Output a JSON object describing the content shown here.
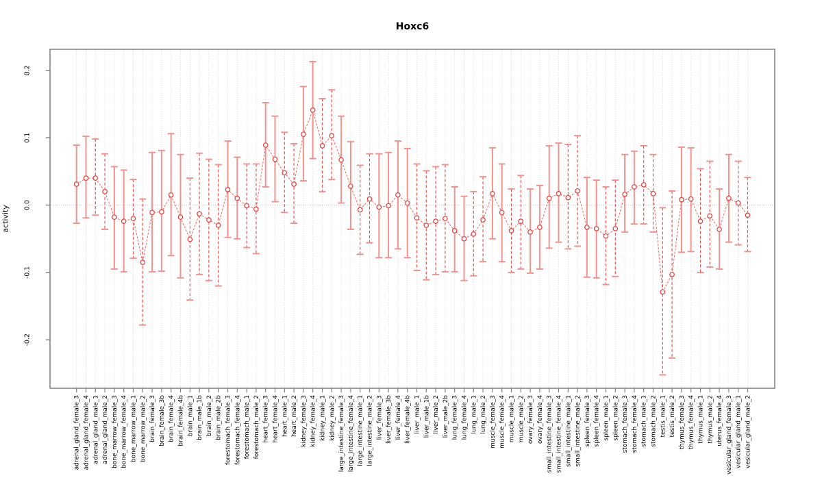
{
  "chart_data": {
    "type": "scatter",
    "title": "Hoxc6",
    "xlabel": "",
    "ylabel": "activity",
    "ylim": [
      -0.27,
      0.235
    ],
    "yticks": [
      -0.2,
      -0.1,
      0.0,
      0.1,
      0.2
    ],
    "grid": "dotted vertical gridline at every category; dotted horizontal reference line at y=0",
    "legend": "none",
    "marker": "open-circle",
    "errorbar_linetype_rule": "female samples solid, male samples dashed",
    "categories": [
      "adrenal_gland_female_3",
      "adrenal_gland_female_4",
      "adrenal_gland_male_1",
      "adrenal_gland_male_2",
      "bone_marrow_female_3",
      "bone_marrow_female_4",
      "bone_marrow_male_1",
      "bone_marrow_male_2",
      "brain_female_3",
      "brain_female_3b",
      "brain_female_4",
      "brain_female_4b",
      "brain_male_1",
      "brain_male_1b",
      "brain_male_2",
      "brain_male_2b",
      "forestomach_female_3",
      "forestomach_female_4",
      "forestomach_male_1",
      "forestomach_male_2",
      "heart_female_3",
      "heart_female_4",
      "heart_male_1",
      "heart_male_2",
      "kidney_female_3",
      "kidney_female_4",
      "kidney_male_1",
      "kidney_male_2",
      "large_intestine_female_3",
      "large_intestine_female_4",
      "large_intestine_male_1",
      "large_intestine_male_2",
      "liver_female_3",
      "liver_female_3b",
      "liver_female_4",
      "liver_female_4b",
      "liver_male_1",
      "liver_male_1b",
      "liver_male_2",
      "liver_male_2b",
      "lung_female_3",
      "lung_female_4",
      "lung_male_1",
      "lung_male_2",
      "muscle_female_3",
      "muscle_female_4",
      "muscle_male_1",
      "muscle_male_2",
      "ovary_female_3",
      "ovary_female_4",
      "small_intestine_female_3",
      "small_intestine_female_4",
      "small_intestine_male_1",
      "small_intestine_male_2",
      "spleen_female_3",
      "spleen_female_4",
      "spleen_male_1",
      "spleen_male_2",
      "stomach_female_3",
      "stomach_female_4",
      "stomach_male_1",
      "stomach_male_2",
      "testis_male_1",
      "testis_male_2",
      "thymus_female_3",
      "thymus_female_4",
      "thymus_male_1",
      "thymus_male_2",
      "uterus_female_4",
      "vesicular_gland_female_3",
      "vesicular_gland_male_1",
      "vesicular_gland_male_2"
    ],
    "values": [
      0.031,
      0.04,
      0.04,
      0.02,
      -0.018,
      -0.024,
      -0.02,
      -0.085,
      -0.011,
      -0.01,
      0.015,
      -0.018,
      -0.051,
      -0.013,
      -0.022,
      -0.03,
      0.023,
      0.01,
      -0.001,
      -0.006,
      0.089,
      0.068,
      0.048,
      0.031,
      0.105,
      0.141,
      0.088,
      0.103,
      0.067,
      0.028,
      -0.007,
      0.009,
      -0.003,
      -0.001,
      0.015,
      0.003,
      -0.019,
      -0.03,
      -0.024,
      -0.02,
      -0.038,
      -0.05,
      -0.043,
      -0.022,
      0.017,
      -0.011,
      -0.038,
      -0.024,
      -0.04,
      -0.033,
      0.01,
      0.017,
      0.011,
      0.021,
      -0.033,
      -0.035,
      -0.046,
      -0.035,
      0.016,
      0.027,
      0.03,
      0.017,
      -0.129,
      -0.103,
      0.008,
      0.009,
      -0.024,
      -0.016,
      -0.036,
      0.01,
      0.003,
      -0.015
    ],
    "err_high": [
      0.089,
      0.102,
      0.098,
      0.076,
      0.057,
      0.052,
      0.038,
      0.009,
      0.078,
      0.081,
      0.106,
      0.075,
      0.04,
      0.077,
      0.068,
      0.06,
      0.095,
      0.071,
      0.061,
      0.061,
      0.152,
      0.132,
      0.108,
      0.091,
      0.176,
      0.213,
      0.158,
      0.171,
      0.132,
      0.094,
      0.059,
      0.076,
      0.076,
      0.078,
      0.095,
      0.084,
      0.061,
      0.051,
      0.057,
      0.06,
      0.027,
      0.013,
      0.02,
      0.042,
      0.085,
      0.061,
      0.024,
      0.044,
      0.024,
      0.029,
      0.088,
      0.092,
      0.09,
      0.103,
      0.041,
      0.037,
      0.027,
      0.037,
      0.075,
      0.08,
      0.088,
      0.075,
      -0.004,
      0.021,
      0.086,
      0.085,
      0.054,
      0.065,
      0.024,
      0.075,
      0.065,
      0.041
    ],
    "err_low": [
      -0.027,
      -0.019,
      -0.015,
      -0.036,
      -0.095,
      -0.099,
      -0.079,
      -0.178,
      -0.099,
      -0.098,
      -0.075,
      -0.108,
      -0.141,
      -0.103,
      -0.112,
      -0.12,
      -0.048,
      -0.05,
      -0.063,
      -0.072,
      0.027,
      0.005,
      -0.011,
      -0.027,
      0.036,
      0.069,
      0.02,
      0.038,
      0.003,
      -0.036,
      -0.073,
      -0.056,
      -0.078,
      -0.078,
      -0.065,
      -0.078,
      -0.097,
      -0.111,
      -0.103,
      -0.099,
      -0.099,
      -0.112,
      -0.105,
      -0.084,
      -0.05,
      -0.084,
      -0.1,
      -0.095,
      -0.101,
      -0.095,
      -0.064,
      -0.055,
      -0.065,
      -0.061,
      -0.107,
      -0.108,
      -0.118,
      -0.106,
      -0.04,
      -0.028,
      -0.028,
      -0.04,
      -0.252,
      -0.227,
      -0.07,
      -0.069,
      -0.1,
      -0.092,
      -0.095,
      -0.055,
      -0.059,
      -0.069
    ],
    "colors": {
      "point": "#e8433e",
      "errorbar_solid": "#f5918a",
      "errorbar_dashed": "#e8524d",
      "cap": "#f5918a",
      "connector": "#f0645e",
      "gridline": "#d9d9d9",
      "zero_line": "#c9c9c9",
      "frame": "#7f7f7f",
      "text": "#000000"
    }
  }
}
